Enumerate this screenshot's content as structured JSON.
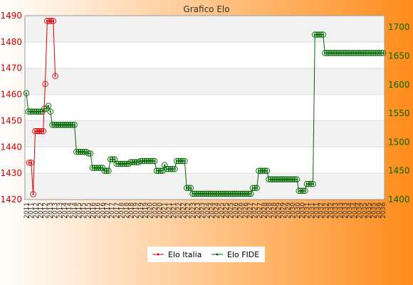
{
  "chart_data": {
    "type": "line",
    "title": "Grafico Elo",
    "background": {
      "gradient_from": "#ffffff",
      "gradient_to": "#ff8c1a"
    },
    "plot_bands": [
      "#f2f2f2",
      "#ffffff"
    ],
    "y_left": {
      "ylim": [
        1420,
        1490
      ],
      "ticks": [
        1420,
        1430,
        1440,
        1450,
        1460,
        1470,
        1480,
        1490
      ],
      "color": "#cc0000"
    },
    "y_right": {
      "ylim": [
        1400,
        1720
      ],
      "ticks": [
        1400,
        1450,
        1500,
        1550,
        1600,
        1650,
        1700
      ],
      "color": "#006600"
    },
    "x_tick_labels": [
      "2011",
      "2011",
      "2012",
      "2012",
      "2012",
      "2013",
      "2013",
      "2013",
      "2014",
      "2014",
      "2014",
      "2015",
      "2015",
      "2015",
      "2016",
      "2016",
      "2016",
      "2017",
      "2017",
      "2017",
      "2018",
      "2018",
      "2018",
      "2019",
      "2019",
      "2019",
      "2020",
      "2020",
      "2020",
      "2021",
      "2021",
      "2021",
      "2022",
      "2022",
      "2022",
      "2023",
      "2023",
      "2023",
      "2024",
      "2024",
      "2024",
      "2025",
      "2025",
      "2025",
      "2026",
      "2026",
      "2026",
      "2027",
      "2027",
      "2027",
      "2028",
      "2028",
      "2028",
      "2029",
      "2029",
      "2029",
      "2030",
      "2030",
      "2030",
      "2031",
      "2031",
      "2031",
      "2032",
      "2032",
      "2032",
      "2033",
      "2033",
      "2033",
      "2034",
      "2034",
      "2034",
      "2035",
      "2035",
      "2035",
      "2036",
      "2036"
    ],
    "legend": {
      "placement": "bottom"
    },
    "series": [
      {
        "name": "Elo Italia",
        "axis": "left",
        "color": "#dd0000",
        "points": [
          [
            0,
            1434
          ],
          [
            1,
            1434
          ],
          [
            2,
            1422
          ],
          [
            3,
            1446
          ],
          [
            4,
            1446
          ],
          [
            5,
            1446
          ],
          [
            6,
            1446
          ],
          [
            7,
            1446
          ],
          [
            8,
            1464
          ],
          [
            9,
            1488
          ],
          [
            10,
            1488
          ],
          [
            11,
            1488
          ],
          [
            12,
            1488
          ],
          [
            13,
            1467
          ]
        ]
      },
      {
        "name": "Elo FIDE",
        "axis": "right",
        "color": "#006600",
        "values": [
          1585,
          1553,
          1553,
          1553,
          1553,
          1553,
          1553,
          1553,
          1553,
          1558,
          1558,
          1563,
          1553,
          1530,
          1530,
          1530,
          1530,
          1530,
          1530,
          1530,
          1530,
          1530,
          1530,
          1530,
          1530,
          1483,
          1483,
          1483,
          1483,
          1483,
          1483,
          1480,
          1480,
          1455,
          1455,
          1455,
          1455,
          1455,
          1455,
          1450,
          1450,
          1450,
          1470,
          1470,
          1470,
          1462,
          1462,
          1462,
          1462,
          1462,
          1462,
          1462,
          1465,
          1465,
          1465,
          1465,
          1465,
          1467,
          1467,
          1467,
          1467,
          1467,
          1467,
          1467,
          1467,
          1450,
          1450,
          1450,
          1450,
          1460,
          1453,
          1453,
          1453,
          1453,
          1453,
          1467,
          1467,
          1467,
          1467,
          1467,
          1420,
          1420,
          1420,
          1410,
          1410,
          1410,
          1410,
          1410,
          1410,
          1410,
          1410,
          1410,
          1410,
          1410,
          1410,
          1410,
          1410,
          1410,
          1410,
          1410,
          1410,
          1410,
          1410,
          1410,
          1410,
          1410,
          1410,
          1410,
          1410,
          1410,
          1410,
          1410,
          1410,
          1420,
          1420,
          1420,
          1450,
          1450,
          1450,
          1450,
          1450,
          1435,
          1435,
          1435,
          1435,
          1435,
          1435,
          1435,
          1435,
          1435,
          1435,
          1435,
          1435,
          1435,
          1435,
          1435,
          1415,
          1415,
          1415,
          1415,
          1427,
          1427,
          1427,
          1427,
          1687,
          1687,
          1687,
          1687,
          1687,
          1655,
          1655,
          1655,
          1655,
          1655,
          1655,
          1655,
          1655,
          1655,
          1655,
          1655,
          1655,
          1655,
          1655,
          1655,
          1655,
          1655,
          1655,
          1655,
          1655,
          1655,
          1655,
          1655,
          1655,
          1655,
          1655,
          1655,
          1655,
          1655,
          1655
        ]
      }
    ]
  }
}
